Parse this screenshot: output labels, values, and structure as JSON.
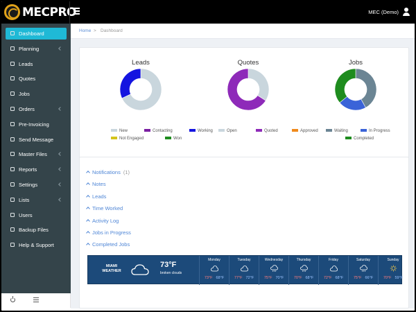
{
  "brand": {
    "logo_text": "MECPRO",
    "accent": "#e0a21a"
  },
  "header": {
    "user_label": "MEC (Demo)"
  },
  "sidebar": {
    "items": [
      {
        "label": "Dashboard",
        "active": true,
        "has_children": false
      },
      {
        "label": "Planning",
        "has_children": true
      },
      {
        "label": "Leads",
        "has_children": false
      },
      {
        "label": "Quotes",
        "has_children": false
      },
      {
        "label": "Jobs",
        "has_children": false
      },
      {
        "label": "Orders",
        "has_children": true
      },
      {
        "label": "Pre-Invoicing",
        "has_children": false
      },
      {
        "label": "Send Message",
        "has_children": false
      },
      {
        "label": "Master Files",
        "has_children": true
      },
      {
        "label": "Reports",
        "has_children": true
      },
      {
        "label": "Settings",
        "has_children": true
      },
      {
        "label": "Lists",
        "has_children": true
      },
      {
        "label": "Users",
        "has_children": false
      },
      {
        "label": "Backup Files",
        "has_children": false
      },
      {
        "label": "Help & Support",
        "has_children": false
      }
    ]
  },
  "breadcrumb": {
    "home": "Home",
    "separator": ">",
    "current": "Dashboard"
  },
  "chart_data": [
    {
      "type": "pie",
      "title": "Leads",
      "categories": [
        "New",
        "Contacting",
        "Working",
        "Not Engaged",
        "Won"
      ],
      "values": [
        0.68,
        0,
        0.32,
        0,
        0
      ],
      "colors": [
        "#c9d6dd",
        "#7a1fa2",
        "#1414e0",
        "#d4c41c",
        "#1e8c1e"
      ]
    },
    {
      "type": "pie",
      "title": "Quotes",
      "categories": [
        "Open",
        "Quoted",
        "Approved"
      ],
      "values": [
        0.34,
        0.66,
        0
      ],
      "colors": [
        "#c9d6dd",
        "#8e2ab9",
        "#f08a1c"
      ]
    },
    {
      "type": "pie",
      "title": "Jobs",
      "categories": [
        "Waiting",
        "In Progress",
        "Completed"
      ],
      "values": [
        0.42,
        0.22,
        0.36
      ],
      "colors": [
        "#6b8594",
        "#3a63d8",
        "#1e8c1e"
      ]
    }
  ],
  "carousel": {
    "pages": 4,
    "current": 0
  },
  "panels": [
    {
      "label": "Notifications",
      "count": "(1)"
    },
    {
      "label": "Notes",
      "count": ""
    },
    {
      "label": "Leads",
      "count": ""
    },
    {
      "label": "Time Worked",
      "count": ""
    },
    {
      "label": "Activity Log",
      "count": ""
    },
    {
      "label": "Jobs in Progress",
      "count": ""
    },
    {
      "label": "Completed Jobs",
      "count": ""
    }
  ],
  "weather": {
    "city": "MIAMI",
    "city_sub": "WEATHER",
    "current_temp": "73°F",
    "current_desc": "broken clouds",
    "current_icon": "cloud-icon",
    "days": [
      {
        "name": "Monday",
        "icon": "cloud-icon",
        "hi": "73°F",
        "lo": "68°F"
      },
      {
        "name": "Tuesday",
        "icon": "cloud-icon",
        "hi": "77°F",
        "lo": "72°F"
      },
      {
        "name": "Wednesday",
        "icon": "rain-cloud-icon",
        "hi": "75°F",
        "lo": "70°F"
      },
      {
        "name": "Thursday",
        "icon": "rain-cloud-icon",
        "hi": "70°F",
        "lo": "68°F"
      },
      {
        "name": "Friday",
        "icon": "cloud-icon",
        "hi": "72°F",
        "lo": "68°F"
      },
      {
        "name": "Saturday",
        "icon": "rain-cloud-icon",
        "hi": "75°F",
        "lo": "66°F"
      },
      {
        "name": "Sunday",
        "icon": "sun-icon",
        "hi": "70°F",
        "lo": "59°F"
      }
    ]
  }
}
